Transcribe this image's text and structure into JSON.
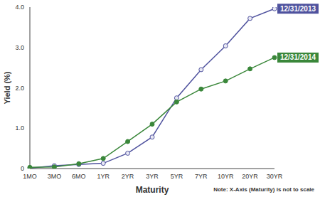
{
  "chart_data": {
    "type": "line",
    "x_label": "Maturity",
    "y_label": "Yield (%)",
    "note": "Note: X-Axis (Maturity) is not to scale",
    "categories": [
      "1MO",
      "3MO",
      "6MO",
      "1YR",
      "2YR",
      "3YR",
      "5YR",
      "7YR",
      "10YR",
      "20YR",
      "30YR"
    ],
    "series": [
      {
        "name": "12/31/2013",
        "color": "#4f529e",
        "marker": "open_circle",
        "values": [
          0.01,
          0.07,
          0.1,
          0.13,
          0.38,
          0.78,
          1.75,
          2.45,
          3.04,
          3.72,
          3.96
        ]
      },
      {
        "name": "12/31/2014",
        "color": "#3a873a",
        "marker": "circle",
        "values": [
          0.03,
          0.04,
          0.12,
          0.25,
          0.67,
          1.1,
          1.65,
          1.97,
          2.17,
          2.47,
          2.75
        ]
      }
    ],
    "ylim": [
      0,
      4
    ],
    "yticks": [
      0,
      {
        "value": 1,
        "label": "1.0"
      },
      {
        "value": 2,
        "label": "2.0"
      },
      {
        "value": 3,
        "label": "3.0"
      },
      {
        "value": 4,
        "label": "4.0"
      }
    ],
    "grid": false
  }
}
